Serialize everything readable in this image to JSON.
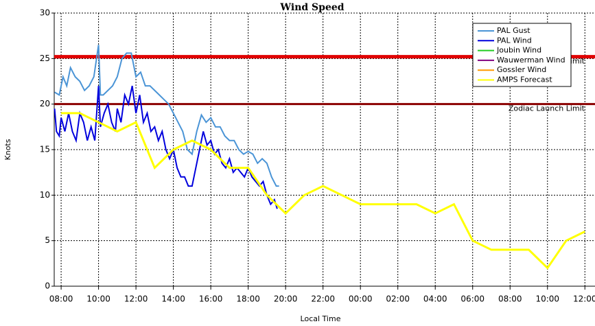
{
  "chart_data": {
    "type": "line",
    "title": "Wind Speed",
    "x_label": "Local Time",
    "y_label": "Knots",
    "xlim": [
      7.63,
      36.1
    ],
    "ylim": [
      0,
      30
    ],
    "grid": true,
    "xticks": [
      {
        "value": 8,
        "label": "08:00"
      },
      {
        "value": 10,
        "label": "10:00"
      },
      {
        "value": 12,
        "label": "12:00"
      },
      {
        "value": 14,
        "label": "14:00"
      },
      {
        "value": 16,
        "label": "16:00"
      },
      {
        "value": 18,
        "label": "18:00"
      },
      {
        "value": 20,
        "label": "20:00"
      },
      {
        "value": 22,
        "label": "22:00"
      },
      {
        "value": 24,
        "label": "00:00"
      },
      {
        "value": 26,
        "label": "02:00"
      },
      {
        "value": 28,
        "label": "04:00"
      },
      {
        "value": 30,
        "label": "06:00"
      },
      {
        "value": 32,
        "label": "08:00"
      },
      {
        "value": 34,
        "label": "10:00"
      },
      {
        "value": 36,
        "label": "12:00"
      }
    ],
    "yticks": [
      0,
      5,
      10,
      15,
      20,
      25,
      30
    ],
    "limits": [
      {
        "label": "Limit",
        "value": 25.2,
        "color": "#e00000"
      },
      {
        "label": "Zodiac Launch Limit",
        "value": 20,
        "color": "#8b0000"
      }
    ],
    "series": [
      {
        "name": "PAL Gust",
        "color": "#4a94d6",
        "x": [
          7.65,
          7.9,
          8.1,
          8.3,
          8.5,
          8.75,
          9.0,
          9.25,
          9.5,
          9.75,
          10.0,
          10.1,
          10.25,
          10.5,
          10.75,
          11.0,
          11.25,
          11.5,
          11.75,
          12.0,
          12.25,
          12.5,
          12.75,
          13.0,
          13.25,
          13.5,
          13.75,
          14.0,
          14.25,
          14.5,
          14.75,
          15.0,
          15.25,
          15.5,
          15.75,
          16.0,
          16.25,
          16.5,
          16.75,
          17.0,
          17.25,
          17.5,
          17.75,
          18.0,
          18.25,
          18.5,
          18.75,
          19.0,
          19.25,
          19.5,
          19.65
        ],
        "values": [
          21.3,
          21,
          23,
          22,
          24,
          23,
          22.5,
          21.5,
          22,
          23,
          26.5,
          21,
          21,
          21.5,
          22,
          23,
          25,
          25.6,
          25.6,
          23,
          23.5,
          22,
          22,
          21.5,
          21,
          20.5,
          20,
          19,
          18,
          17,
          15,
          14.5,
          17,
          18.8,
          18,
          18.5,
          17.5,
          17.5,
          16.5,
          16,
          16,
          15,
          14.5,
          14.8,
          14.5,
          13.5,
          14,
          13.5,
          12,
          11,
          11
        ]
      },
      {
        "name": "PAL Wind",
        "color": "#0000dd",
        "x": [
          7.65,
          7.75,
          7.9,
          8.0,
          8.2,
          8.4,
          8.6,
          8.8,
          9.0,
          9.2,
          9.4,
          9.6,
          9.8,
          9.9,
          10.0,
          10.1,
          10.3,
          10.5,
          10.7,
          10.9,
          11.0,
          11.2,
          11.4,
          11.6,
          11.8,
          12.0,
          12.2,
          12.4,
          12.6,
          12.8,
          13.0,
          13.2,
          13.4,
          13.6,
          13.8,
          14.0,
          14.2,
          14.4,
          14.6,
          14.8,
          15.0,
          15.2,
          15.4,
          15.6,
          15.8,
          16.0,
          16.2,
          16.4,
          16.6,
          16.8,
          17.0,
          17.2,
          17.4,
          17.6,
          17.8,
          18.0,
          18.2,
          18.4,
          18.6,
          18.8,
          19.0,
          19.2,
          19.4,
          19.55
        ],
        "values": [
          19.5,
          17,
          16.5,
          18.5,
          17,
          19,
          17,
          16,
          19,
          18,
          16,
          17.5,
          16,
          19,
          22,
          17.5,
          19,
          20,
          18,
          17,
          19.5,
          18,
          21,
          20,
          22,
          19,
          21,
          18,
          19,
          17,
          17.5,
          16,
          17,
          15,
          14,
          15,
          13,
          12,
          12,
          11,
          11,
          13,
          15,
          17,
          15.5,
          16,
          14.5,
          15,
          13.5,
          13,
          14,
          12.5,
          13,
          12.5,
          12,
          13,
          12,
          11.5,
          11,
          11.5,
          10,
          9,
          9.5,
          8.5
        ]
      },
      {
        "name": "Joubin Wind",
        "color": "#22cc22",
        "x": [],
        "values": []
      },
      {
        "name": "Wauwerman Wind",
        "color": "#800080",
        "x": [],
        "values": []
      },
      {
        "name": "Gossler Wind",
        "color": "#ff9900",
        "x": [],
        "values": []
      },
      {
        "name": "AMPS Forecast",
        "color": "#ffff00",
        "x": [
          8,
          9,
          10,
          11,
          12,
          13,
          14,
          15,
          16,
          17,
          18,
          19,
          20,
          21,
          22,
          23,
          24,
          25,
          26,
          27,
          28,
          29,
          30,
          31,
          32,
          33,
          34,
          35,
          36
        ],
        "values": [
          19,
          19,
          18,
          17,
          18,
          13,
          15,
          16,
          15,
          13,
          13,
          10,
          8,
          10,
          11,
          10,
          9,
          9,
          9,
          9,
          8,
          9,
          5,
          4,
          4,
          4,
          2,
          5,
          6
        ]
      }
    ]
  }
}
